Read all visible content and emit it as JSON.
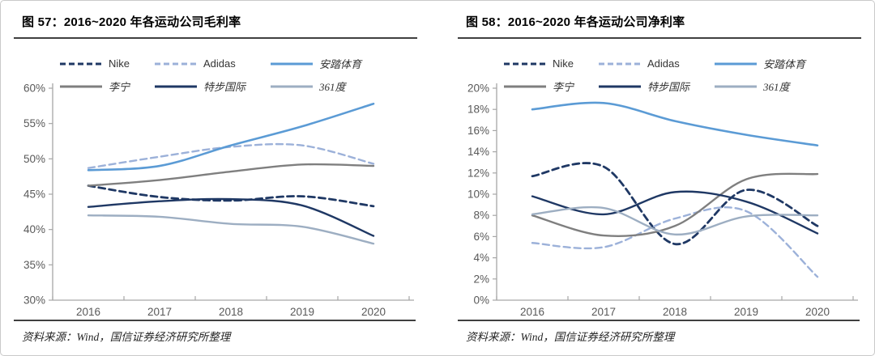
{
  "page": {
    "source_note": "资料来源：Wind，国信证券经济研究所整理"
  },
  "chart_data": [
    {
      "type": "line",
      "title": "图 57：2016~2020 年各运动公司毛利率",
      "source": "资料来源：Wind，国信证券经济研究所整理",
      "categories": [
        "2016",
        "2017",
        "2018",
        "2019",
        "2020"
      ],
      "xlabel": "",
      "ylabel": "",
      "ylim": [
        30,
        60
      ],
      "ytick_step": 5,
      "ytick_labels": [
        "60%",
        "55%",
        "50%",
        "45%",
        "40%",
        "35%",
        "30%"
      ],
      "grid": false,
      "legend_position": "top",
      "axis_color": "#a6a6a6",
      "series": [
        {
          "id": "nike",
          "name": "Nike",
          "style": "dashed",
          "color": "#1f3864",
          "values": [
            46.2,
            44.6,
            44.1,
            44.7,
            43.3
          ]
        },
        {
          "id": "adidas",
          "name": "Adidas",
          "style": "dashed",
          "color": "#9cb1d9",
          "values": [
            48.7,
            50.3,
            51.7,
            51.9,
            49.3
          ]
        },
        {
          "id": "anta",
          "name": "安踏体育",
          "style": "solid",
          "color": "#5b9bd5",
          "values": [
            48.4,
            49.0,
            51.9,
            54.6,
            57.8
          ]
        },
        {
          "id": "li-ning",
          "name": "李宁",
          "style": "solid",
          "color": "#7f7f7f",
          "values": [
            46.2,
            47.0,
            48.2,
            49.2,
            49.0
          ]
        },
        {
          "id": "xtep",
          "name": "特步国际",
          "style": "solid",
          "color": "#1f3864",
          "values": [
            43.2,
            44.0,
            44.3,
            43.4,
            39.1
          ]
        },
        {
          "id": "361",
          "name": "361度",
          "style": "solid",
          "color": "#9daec2",
          "values": [
            42.0,
            41.8,
            40.8,
            40.4,
            38.0
          ]
        }
      ]
    },
    {
      "type": "line",
      "title": "图 58：2016~2020 年各运动公司净利率",
      "source": "资料来源：Wind，国信证券经济研究所整理",
      "categories": [
        "2016",
        "2017",
        "2018",
        "2019",
        "2020"
      ],
      "xlabel": "",
      "ylabel": "",
      "ylim": [
        0,
        20
      ],
      "ytick_step": 2,
      "ytick_labels": [
        "20%",
        "18%",
        "16%",
        "14%",
        "12%",
        "10%",
        "8%",
        "6%",
        "4%",
        "2%",
        "0%"
      ],
      "grid": false,
      "legend_position": "top",
      "axis_color": "#a6a6a6",
      "series": [
        {
          "id": "nike",
          "name": "Nike",
          "style": "dashed",
          "color": "#1f3864",
          "values": [
            11.7,
            12.6,
            5.3,
            10.4,
            7.0
          ]
        },
        {
          "id": "adidas",
          "name": "Adidas",
          "style": "dashed",
          "color": "#9cb1d9",
          "values": [
            5.4,
            5.0,
            7.7,
            8.4,
            2.2
          ]
        },
        {
          "id": "anta",
          "name": "安踏体育",
          "style": "solid",
          "color": "#5b9bd5",
          "values": [
            18.0,
            18.6,
            16.9,
            15.6,
            14.6
          ]
        },
        {
          "id": "li-ning",
          "name": "李宁",
          "style": "solid",
          "color": "#7f7f7f",
          "values": [
            8.0,
            6.1,
            7.0,
            11.4,
            11.9
          ]
        },
        {
          "id": "xtep",
          "name": "特步国际",
          "style": "solid",
          "color": "#1f3864",
          "values": [
            9.8,
            8.1,
            10.2,
            9.3,
            6.3
          ]
        },
        {
          "id": "361",
          "name": "361度",
          "style": "solid",
          "color": "#9daec2",
          "values": [
            8.1,
            8.7,
            6.2,
            7.9,
            8.0
          ]
        }
      ]
    }
  ]
}
